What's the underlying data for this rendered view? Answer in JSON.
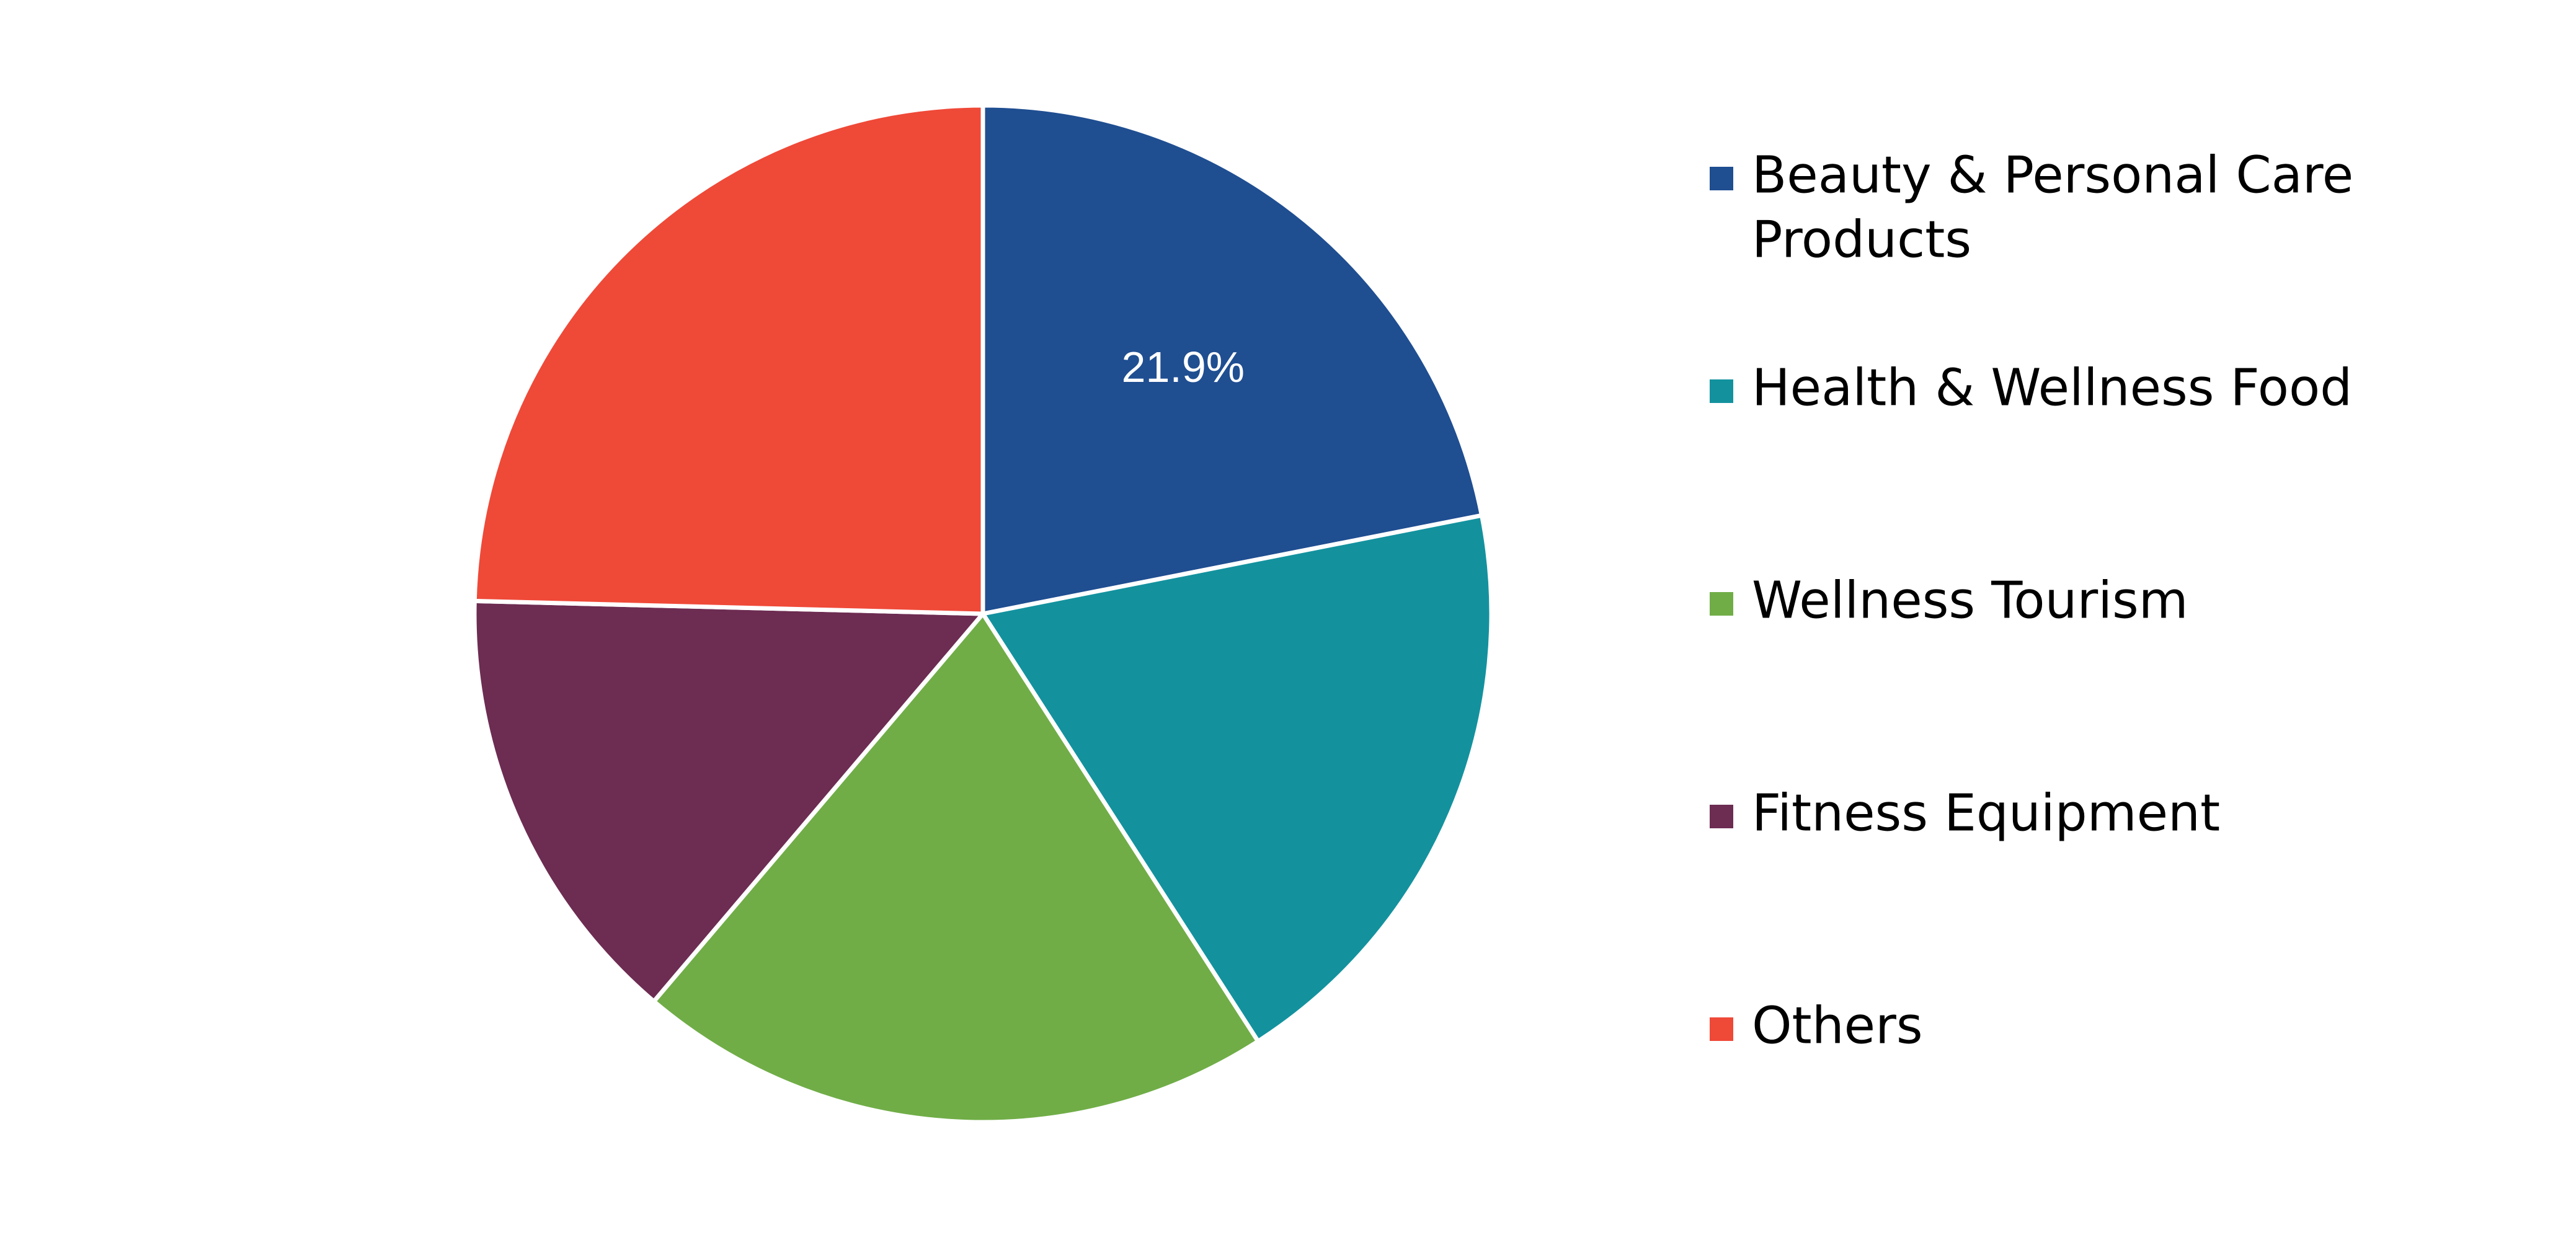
{
  "chart_data": {
    "type": "pie",
    "title": "",
    "start_angle_deg": 0,
    "direction": "clockwise",
    "legend_position": "right",
    "slices": [
      {
        "label": "Beauty & Personal Care Products",
        "legend_lines": [
          "Beauty & Personal Care",
          "Products"
        ],
        "value": 21.9,
        "color": "#1F4E91",
        "data_label": "21.9%"
      },
      {
        "label": "Health & Wellness Food",
        "legend_lines": [
          "Health & Wellness Food"
        ],
        "value": 19.0,
        "color": "#13929E",
        "data_label": ""
      },
      {
        "label": "Wellness Tourism",
        "legend_lines": [
          "Wellness Tourism"
        ],
        "value": 20.3,
        "color": "#70AD47",
        "data_label": ""
      },
      {
        "label": "Fitness Equipment",
        "legend_lines": [
          "Fitness Equipment"
        ],
        "value": 14.2,
        "color": "#6D2C52",
        "data_label": ""
      },
      {
        "label": "Others",
        "legend_lines": [
          "Others"
        ],
        "value": 24.6,
        "color": "#EF4938",
        "data_label": ""
      }
    ]
  }
}
